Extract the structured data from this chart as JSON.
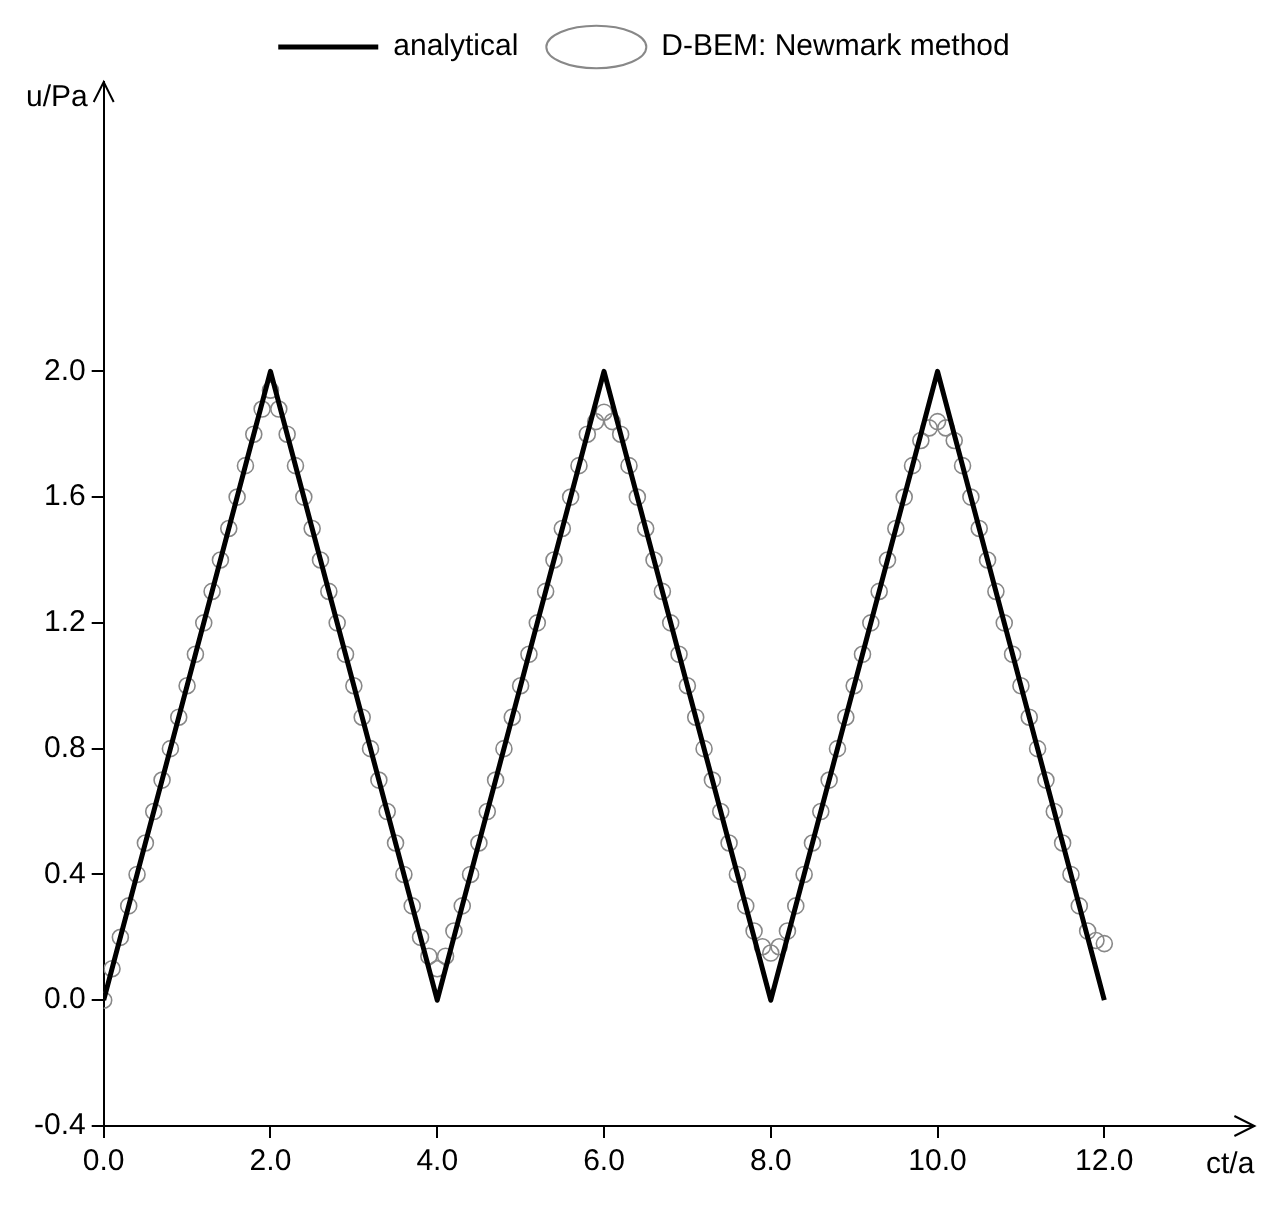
{
  "chart_data": {
    "type": "scatter",
    "xlabel": "ct/a",
    "ylabel": "u/Pa",
    "legend": "top",
    "grid": false,
    "marker": "circle",
    "xlim": [
      0,
      13.8
    ],
    "ylim": [
      -0.4,
      2.92
    ],
    "xticks": [
      {
        "value": 0,
        "label": "0.0"
      },
      {
        "value": 2,
        "label": "2.0"
      },
      {
        "value": 4,
        "label": "4.0"
      },
      {
        "value": 6,
        "label": "6.0"
      },
      {
        "value": 8,
        "label": "8.0"
      },
      {
        "value": 10,
        "label": "10.0"
      },
      {
        "value": 12,
        "label": "12.0"
      }
    ],
    "yticks": [
      {
        "value": -0.4,
        "label": "-0.4"
      },
      {
        "value": 0,
        "label": "0.0"
      },
      {
        "value": 0.4,
        "label": "0.4"
      },
      {
        "value": 0.8,
        "label": "0.8"
      },
      {
        "value": 1.2,
        "label": "1.2"
      },
      {
        "value": 1.6,
        "label": "1.6"
      },
      {
        "value": 2,
        "label": "2.0"
      }
    ],
    "x": [
      0,
      0.1,
      0.2,
      0.3,
      0.4,
      0.5,
      0.6,
      0.7,
      0.8,
      0.9,
      1,
      1.1,
      1.2,
      1.3,
      1.4,
      1.5,
      1.6,
      1.7,
      1.8,
      1.9,
      2,
      2.1,
      2.2,
      2.3,
      2.4,
      2.5,
      2.6,
      2.7,
      2.8,
      2.9,
      3,
      3.1,
      3.2,
      3.3,
      3.4,
      3.5,
      3.6,
      3.7,
      3.8,
      3.9,
      4,
      4.1,
      4.2,
      4.3,
      4.4,
      4.5,
      4.6,
      4.7,
      4.8,
      4.9,
      5,
      5.1,
      5.2,
      5.3,
      5.4,
      5.5,
      5.6,
      5.7,
      5.8,
      5.9,
      6,
      6.1,
      6.2,
      6.3,
      6.4,
      6.5,
      6.6,
      6.7,
      6.8,
      6.9,
      7,
      7.1,
      7.2,
      7.3,
      7.4,
      7.5,
      7.6,
      7.7,
      7.8,
      7.9,
      8,
      8.1,
      8.2,
      8.3,
      8.4,
      8.5,
      8.6,
      8.7,
      8.8,
      8.9,
      9,
      9.1,
      9.2,
      9.3,
      9.4,
      9.5,
      9.6,
      9.7,
      9.8,
      9.9,
      10,
      10.1,
      10.2,
      10.3,
      10.4,
      10.5,
      10.6,
      10.7,
      10.8,
      10.9,
      11,
      11.1,
      11.2,
      11.3,
      11.4,
      11.5,
      11.6,
      11.7,
      11.8,
      11.9,
      12
    ],
    "series": [
      {
        "name": "analytical",
        "type": "line",
        "marker": "none",
        "color": "#000000",
        "x": [
          0,
          2,
          4,
          6,
          8,
          10,
          12
        ],
        "values": [
          0,
          2,
          0,
          2,
          0,
          2,
          0
        ]
      },
      {
        "name": "D-BEM: Newmark method",
        "color": "#888888",
        "values": [
          0,
          0.1,
          0.2,
          0.3,
          0.4,
          0.5,
          0.6,
          0.7,
          0.8,
          0.9,
          1.0,
          1.1,
          1.2,
          1.3,
          1.4,
          1.5,
          1.6,
          1.7,
          1.8,
          1.88,
          1.94,
          1.88,
          1.8,
          1.7,
          1.6,
          1.5,
          1.4,
          1.3,
          1.2,
          1.1,
          1.0,
          0.9,
          0.8,
          0.7,
          0.6,
          0.5,
          0.4,
          0.3,
          0.2,
          0.14,
          0.1,
          0.14,
          0.22,
          0.3,
          0.4,
          0.5,
          0.6,
          0.7,
          0.8,
          0.9,
          1.0,
          1.1,
          1.2,
          1.3,
          1.4,
          1.5,
          1.6,
          1.7,
          1.8,
          1.84,
          1.87,
          1.84,
          1.8,
          1.7,
          1.6,
          1.5,
          1.4,
          1.3,
          1.2,
          1.1,
          1.0,
          0.9,
          0.8,
          0.7,
          0.6,
          0.5,
          0.4,
          0.3,
          0.22,
          0.17,
          0.15,
          0.17,
          0.22,
          0.3,
          0.4,
          0.5,
          0.6,
          0.7,
          0.8,
          0.9,
          1.0,
          1.1,
          1.2,
          1.3,
          1.4,
          1.5,
          1.6,
          1.7,
          1.78,
          1.82,
          1.84,
          1.82,
          1.78,
          1.7,
          1.6,
          1.5,
          1.4,
          1.3,
          1.2,
          1.1,
          1.0,
          0.9,
          0.8,
          0.7,
          0.6,
          0.5,
          0.4,
          0.3,
          0.22,
          0.19,
          0.18
        ]
      }
    ]
  }
}
